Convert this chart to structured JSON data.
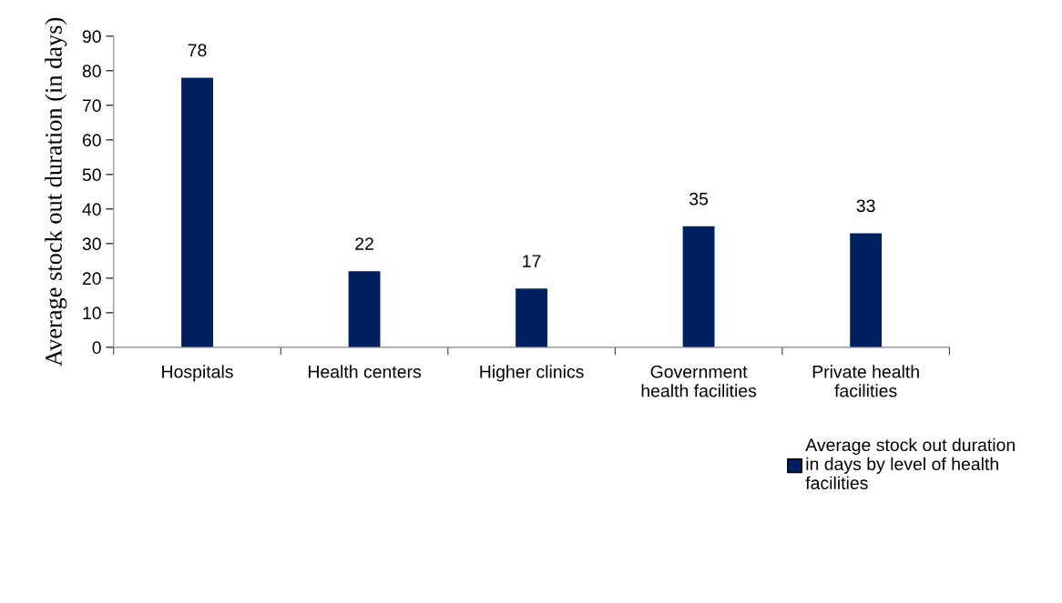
{
  "chart_data": {
    "type": "bar",
    "ylabel": "Average stock out duration (in days)",
    "categories": [
      "Hospitals",
      "Health centers",
      "Higher clinics",
      "Government\nhealth facilities",
      "Private health\nfacilities"
    ],
    "series": [
      {
        "name": "Average stock out duration\nin days by level of health\nfacilities",
        "color": "#002060",
        "values": [
          78,
          22,
          17,
          35,
          33
        ]
      }
    ],
    "ylim": [
      0,
      90
    ],
    "yticks": [
      0,
      10,
      20,
      30,
      40,
      50,
      60,
      70,
      80,
      90
    ],
    "grid": false,
    "legend": "bottom right",
    "data_labels": true
  }
}
